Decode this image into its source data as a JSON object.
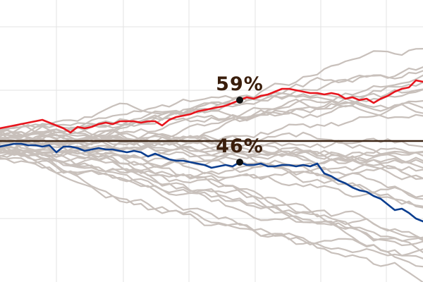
{
  "chart_data": {
    "type": "line",
    "x": [
      0,
      1,
      2,
      3,
      4,
      5,
      6,
      7,
      8,
      9,
      10,
      11,
      12,
      13,
      14,
      15,
      16,
      17,
      18,
      19,
      20,
      21,
      22,
      23,
      24,
      25,
      26,
      27,
      28,
      29,
      30,
      31,
      32,
      33,
      34,
      35,
      36,
      37,
      38,
      39,
      40,
      41,
      42,
      43,
      44,
      45,
      46,
      47,
      48,
      49,
      50,
      51,
      52,
      53,
      54,
      55,
      56,
      57,
      58,
      59,
      60
    ],
    "ylim": [
      0,
      100
    ],
    "reference_line": 50,
    "grid": true,
    "highlighted": [
      {
        "color": "#e8141c",
        "values": [
          54.5,
          55.0,
          55.5,
          56.0,
          56.5,
          57.0,
          57.5,
          56.5,
          55.5,
          54.5,
          53.0,
          55.0,
          54.5,
          55.0,
          56.0,
          56.5,
          56.0,
          57.0,
          57.0,
          57.0,
          56.5,
          57.0,
          57.0,
          55.5,
          57.5,
          58.5,
          59.0,
          59.5,
          60.5,
          61.0,
          61.5,
          62.0,
          62.5,
          63.5,
          64.5,
          65.5,
          65.0,
          66.0,
          66.5,
          67.5,
          68.5,
          68.5,
          68.0,
          67.5,
          67.0,
          67.0,
          66.5,
          67.0,
          66.5,
          65.0,
          65.5,
          64.5,
          65.0,
          63.5,
          65.0,
          66.0,
          67.5,
          68.5,
          69.0,
          71.5,
          71.0
        ],
        "annotation": {
          "x": 34,
          "label": "59%"
        }
      },
      {
        "color": "#0a3d8f",
        "values": [
          48.0,
          48.5,
          49.0,
          49.0,
          48.5,
          48.5,
          48.0,
          48.5,
          46.0,
          48.0,
          48.0,
          47.5,
          46.5,
          47.0,
          47.5,
          47.0,
          47.0,
          46.5,
          46.0,
          46.5,
          46.0,
          44.5,
          45.5,
          44.5,
          43.5,
          43.0,
          43.0,
          42.5,
          42.0,
          41.5,
          40.5,
          41.0,
          41.5,
          41.0,
          42.5,
          41.5,
          41.5,
          42.0,
          41.0,
          41.0,
          41.5,
          41.5,
          41.0,
          41.5,
          41.0,
          42.0,
          38.5,
          37.5,
          36.0,
          35.0,
          33.5,
          32.5,
          32.0,
          30.5,
          29.5,
          27.5,
          25.5,
          26.0,
          24.5,
          22.5,
          21.5
        ],
        "annotation": {
          "x": 34,
          "label": "46%"
        }
      }
    ],
    "background_series_color": "#c8c0bb"
  }
}
